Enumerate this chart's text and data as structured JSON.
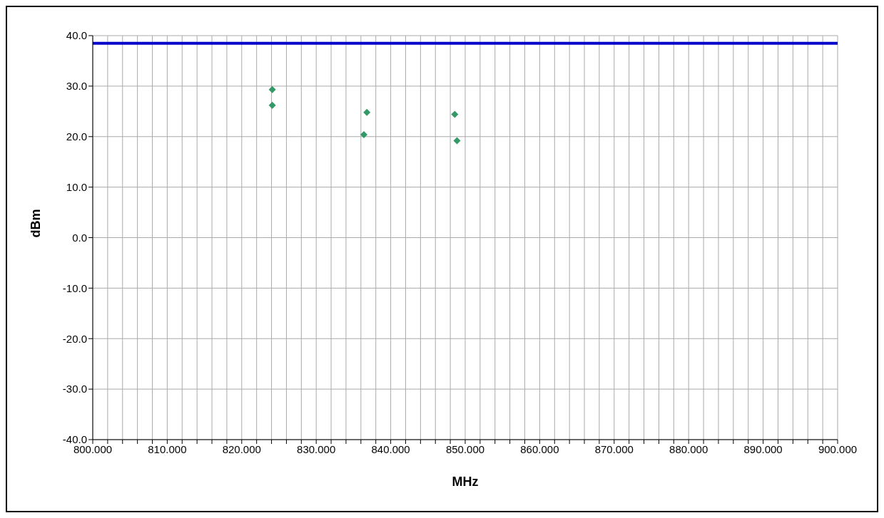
{
  "chart_data": {
    "type": "scatter",
    "xlabel": "MHz",
    "ylabel": "dBm",
    "series": [
      {
        "color": "#339966",
        "x": [
          824.1,
          824.1,
          836.8,
          836.4,
          848.6,
          848.9
        ],
        "values": [
          29.3,
          26.2,
          24.8,
          20.4,
          24.4,
          19.2
        ]
      }
    ],
    "marker": "diamond",
    "grid": true,
    "legend": false,
    "xlim": [
      800,
      900
    ],
    "ylim": [
      -40,
      40
    ],
    "xticks": [
      {
        "value": 800,
        "label": "800.000"
      },
      {
        "value": 802,
        "label": null
      },
      {
        "value": 804,
        "label": null
      },
      {
        "value": 806,
        "label": null
      },
      {
        "value": 808,
        "label": null
      },
      {
        "value": 810,
        "label": "810.000"
      },
      {
        "value": 812,
        "label": null
      },
      {
        "value": 814,
        "label": null
      },
      {
        "value": 816,
        "label": null
      },
      {
        "value": 818,
        "label": null
      },
      {
        "value": 820,
        "label": "820.000"
      },
      {
        "value": 822,
        "label": null
      },
      {
        "value": 824,
        "label": null
      },
      {
        "value": 826,
        "label": null
      },
      {
        "value": 828,
        "label": null
      },
      {
        "value": 830,
        "label": "830.000"
      },
      {
        "value": 832,
        "label": null
      },
      {
        "value": 834,
        "label": null
      },
      {
        "value": 836,
        "label": null
      },
      {
        "value": 838,
        "label": null
      },
      {
        "value": 840,
        "label": "840.000"
      },
      {
        "value": 842,
        "label": null
      },
      {
        "value": 844,
        "label": null
      },
      {
        "value": 846,
        "label": null
      },
      {
        "value": 848,
        "label": null
      },
      {
        "value": 850,
        "label": "850.000"
      },
      {
        "value": 852,
        "label": null
      },
      {
        "value": 854,
        "label": null
      },
      {
        "value": 856,
        "label": null
      },
      {
        "value": 858,
        "label": null
      },
      {
        "value": 860,
        "label": "860.000"
      },
      {
        "value": 862,
        "label": null
      },
      {
        "value": 864,
        "label": null
      },
      {
        "value": 866,
        "label": null
      },
      {
        "value": 868,
        "label": null
      },
      {
        "value": 870,
        "label": "870.000"
      },
      {
        "value": 872,
        "label": null
      },
      {
        "value": 874,
        "label": null
      },
      {
        "value": 876,
        "label": null
      },
      {
        "value": 878,
        "label": null
      },
      {
        "value": 880,
        "label": "880.000"
      },
      {
        "value": 882,
        "label": null
      },
      {
        "value": 884,
        "label": null
      },
      {
        "value": 886,
        "label": null
      },
      {
        "value": 888,
        "label": null
      },
      {
        "value": 890,
        "label": "890.000"
      },
      {
        "value": 892,
        "label": null
      },
      {
        "value": 894,
        "label": null
      },
      {
        "value": 896,
        "label": null
      },
      {
        "value": 898,
        "label": null
      },
      {
        "value": 900,
        "label": "900.000"
      }
    ],
    "yticks": [
      {
        "value": -40,
        "label": "-40.0"
      },
      {
        "value": -30,
        "label": "-30.0"
      },
      {
        "value": -20,
        "label": "-20.0"
      },
      {
        "value": -10,
        "label": "-10.0"
      },
      {
        "value": 0,
        "label": "0.0"
      },
      {
        "value": 10,
        "label": "10.0"
      },
      {
        "value": 20,
        "label": "20.0"
      },
      {
        "value": 30,
        "label": "30.0"
      },
      {
        "value": 40,
        "label": "40.0"
      }
    ],
    "ref_lines": [
      {
        "axis": "y",
        "value": 38.5,
        "color": "#0000cc"
      }
    ]
  }
}
